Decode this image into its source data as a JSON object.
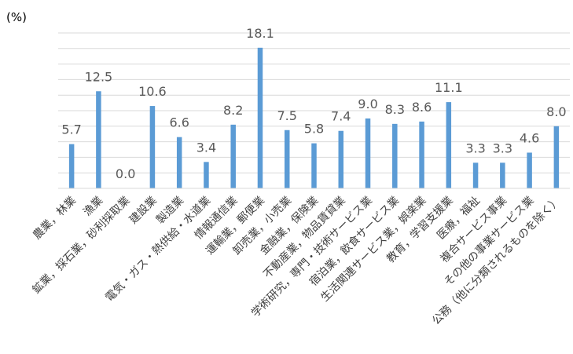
{
  "chart_data": {
    "type": "bar",
    "unit_label": "(%)",
    "categories": [
      "農業，林業",
      "漁業",
      "鉱業，採石業，砂利採取業",
      "建設業",
      "製造業",
      "電気・ガス・熱供給・水道業",
      "情報通信業",
      "運輸業，郵便業",
      "卸売業，小売業",
      "金融業，保険業",
      "不動産業，物品賃貸業",
      "学術研究，専門・技術サービス業",
      "宿泊業，飲食サービス業",
      "生活関連サービス業，娯楽業",
      "教育，学習支援業",
      "医療，福祉",
      "複合サービス事業",
      "その他の事業サービス業",
      "公務（他に分類されるものを除く）"
    ],
    "data_labels": [
      "5.7",
      "12.5",
      "0.0",
      "10.6",
      "6.6",
      "3.4",
      "8.2",
      "18.1",
      "7.5",
      "5.8",
      "7.4",
      "9.0",
      "8.3",
      "8.6",
      "11.1",
      "3.3",
      "3.3",
      "4.6",
      "8.0"
    ],
    "values": [
      5.7,
      12.5,
      0.0,
      10.6,
      6.6,
      3.4,
      8.2,
      18.1,
      7.5,
      5.8,
      7.4,
      9.0,
      8.3,
      8.6,
      11.1,
      3.3,
      3.3,
      4.6,
      8.0
    ],
    "ylim": [
      0,
      20
    ],
    "grid": true,
    "gridline_count": 10,
    "bar_color": "#5b9bd5",
    "grid_color": "#d9d9d9",
    "axis_color": "#d9d9d9",
    "label_color": "#595959",
    "category_label_color": "#404040"
  }
}
